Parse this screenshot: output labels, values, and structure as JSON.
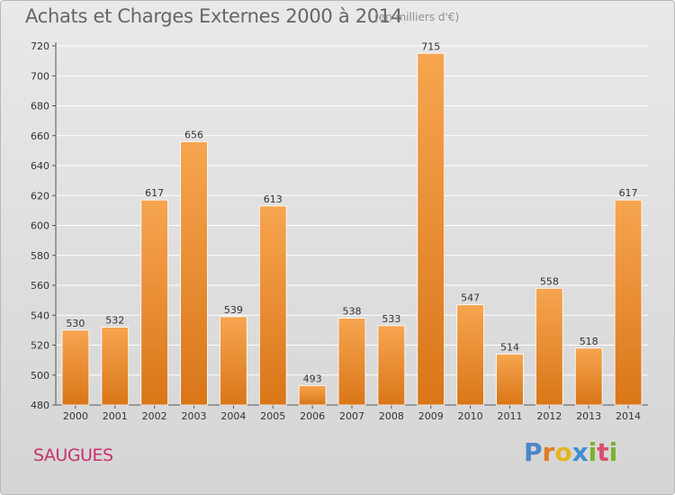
{
  "header": {
    "title": "Achats et Charges Externes 2000 à 2014",
    "subtitle": "(en milliers d'€)"
  },
  "footer": {
    "commune": "SAUGUES",
    "logo_letters": [
      "P",
      "r",
      "o",
      "x",
      "i",
      "t",
      "i"
    ]
  },
  "colors": {
    "bar_top": "#f7a550",
    "bar_bottom": "#d97618",
    "grid": "#ffffff",
    "commune_text": "#c8326e"
  },
  "chart_data": {
    "type": "bar",
    "title": "Achats et Charges Externes 2000 à 2014",
    "subtitle": "(en milliers d'€)",
    "xlabel": "",
    "ylabel": "",
    "categories": [
      "2000",
      "2001",
      "2002",
      "2003",
      "2004",
      "2005",
      "2006",
      "2007",
      "2008",
      "2009",
      "2010",
      "2011",
      "2012",
      "2013",
      "2014"
    ],
    "values": [
      530,
      532,
      617,
      656,
      539,
      613,
      493,
      538,
      533,
      715,
      547,
      514,
      558,
      518,
      617
    ],
    "ylim": [
      480,
      720
    ],
    "yticks": [
      480,
      500,
      520,
      540,
      560,
      580,
      600,
      620,
      640,
      660,
      680,
      700,
      720
    ],
    "grid": true,
    "data_labels": true
  }
}
